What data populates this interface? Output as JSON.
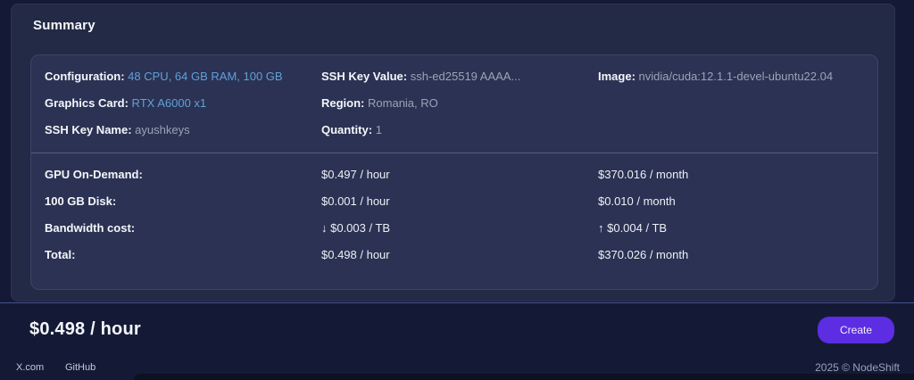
{
  "panel": {
    "title": "Summary"
  },
  "config": {
    "configuration": {
      "label": "Configuration:",
      "value": "48 CPU, 64 GB RAM, 100 GB"
    },
    "graphics_card": {
      "label": "Graphics Card:",
      "value": "RTX A6000 x1"
    },
    "ssh_key_name": {
      "label": "SSH Key Name:",
      "value": "ayushkeys"
    },
    "ssh_key_value": {
      "label": "SSH Key Value:",
      "value": "ssh-ed25519 AAAA..."
    },
    "region": {
      "label": "Region:",
      "value": "Romania, RO"
    },
    "quantity": {
      "label": "Quantity:",
      "value": "1"
    },
    "image": {
      "label": "Image:",
      "value": "nvidia/cuda:12.1.1-devel-ubuntu22.04"
    }
  },
  "pricing": {
    "rows": [
      {
        "label": "GPU On-Demand:",
        "hourly": "$0.497 / hour",
        "monthly": "$370.016 / month"
      },
      {
        "label": "100 GB Disk:",
        "hourly": "$0.001 / hour",
        "monthly": "$0.010 / month"
      },
      {
        "label": "Bandwidth cost:",
        "hourly": "↓ $0.003 / TB",
        "monthly": "↑ $0.004 / TB"
      },
      {
        "label": "Total:",
        "hourly": "$0.498 / hour",
        "monthly": "$370.026 / month"
      }
    ]
  },
  "price_bar": {
    "total": "$0.498 / hour",
    "create_label": "Create"
  },
  "footer": {
    "links": [
      {
        "label": "X.com"
      },
      {
        "label": "GitHub"
      }
    ],
    "copyright": "2025 © NodeShift"
  },
  "colors": {
    "accent_blue": "#61a0d8",
    "button_purple": "#5c2de3",
    "panel_bg": "#232a45",
    "card_bg": "#2b3253"
  }
}
